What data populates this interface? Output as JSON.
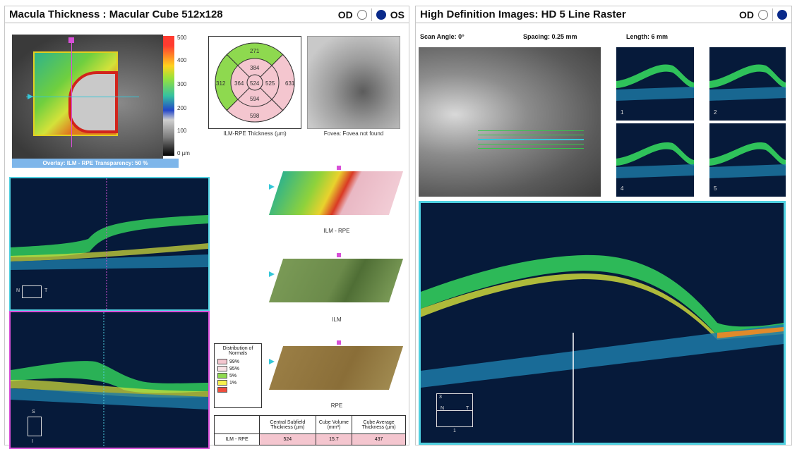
{
  "left_panel": {
    "title": "Macula Thickness : Macular Cube 512x128",
    "od_label": "OD",
    "os_label": "OS",
    "selected_eye": "OS",
    "overlay_label": "Overlay: ILM - RPE  Transparency: 50 %",
    "color_scale": {
      "ticks": [
        "500",
        "400",
        "300",
        "200",
        "100",
        "0 µm"
      ]
    },
    "thickness_map": {
      "caption": "ILM-RPE Thickness (µm)",
      "center": "524",
      "inner": {
        "superior": "384",
        "nasal": "364",
        "inferior": "594",
        "temporal": "525"
      },
      "outer": {
        "superior": "271",
        "nasal": "312",
        "inferior": "598",
        "temporal": "631"
      }
    },
    "fundus_caption": "Fovea: Fovea not found",
    "surface_captions": [
      "ILM - RPE",
      "ILM",
      "RPE"
    ],
    "orientation": {
      "n": "N",
      "t": "T",
      "s": "S",
      "i": "I"
    },
    "legend": {
      "title": "Distribution of Normals",
      "items": [
        {
          "label": "99%",
          "color": "#f4c6cf"
        },
        {
          "label": "95%",
          "color": "#f9e3e6"
        },
        {
          "label": "5%",
          "color": "#8ed94f"
        },
        {
          "label": "1%",
          "color": "#f7f14d"
        },
        {
          "label": "",
          "color": "#ef4d3d"
        }
      ]
    },
    "summary_table": {
      "headers": [
        "",
        "Central Subfield Thickness (µm)",
        "Cube Volume (mm³)",
        "Cube Average Thickness (µm)"
      ],
      "rows": [
        [
          "ILM - RPE",
          "524",
          "15.7",
          "437"
        ]
      ]
    }
  },
  "right_panel": {
    "title": "High Definition Images: HD 5 Line Raster",
    "od_label": "OD",
    "selected_eye": "OS",
    "scan_angle": "Scan Angle: 0°",
    "spacing": "Spacing: 0.25 mm",
    "length": "Length: 6 mm",
    "thumb_labels": [
      "1",
      "2",
      "4",
      "5"
    ],
    "orientation": {
      "n": "N",
      "t": "T",
      "s": "3",
      "i": "1"
    }
  }
}
